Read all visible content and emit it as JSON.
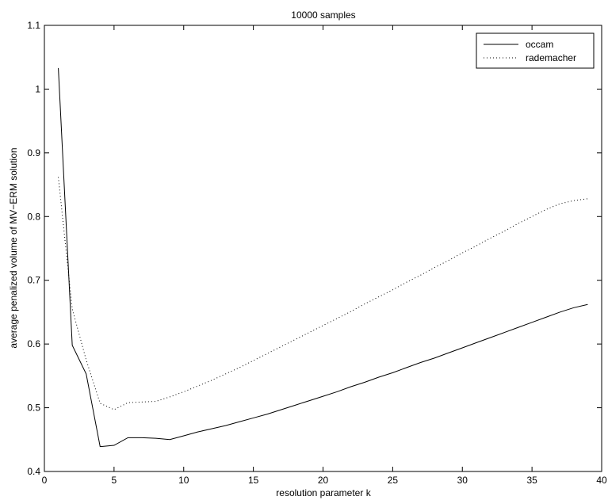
{
  "chart_data": {
    "type": "line",
    "title": "10000 samples",
    "xlabel": "resolution parameter k",
    "ylabel": "average penalized volume of MV−ERM solution",
    "xlim": [
      0,
      40
    ],
    "ylim": [
      0.4,
      1.1
    ],
    "xticks": [
      0,
      5,
      10,
      15,
      20,
      25,
      30,
      35,
      40
    ],
    "yticks": [
      0.4,
      0.5,
      0.6,
      0.7,
      0.8,
      0.9,
      1.0,
      1.1
    ],
    "xtick_labels": [
      "0",
      "5",
      "10",
      "15",
      "20",
      "25",
      "30",
      "35",
      "40"
    ],
    "ytick_labels": [
      "0.4",
      "0.5",
      "0.6",
      "0.7",
      "0.8",
      "0.9",
      "1",
      "1.1"
    ],
    "grid": false,
    "legend_position": "top-right",
    "series": [
      {
        "name": "occam",
        "style": "solid",
        "color": "#000000",
        "x": [
          1,
          2,
          3,
          4,
          5,
          6,
          7,
          8,
          9,
          10,
          11,
          12,
          13,
          14,
          15,
          16,
          17,
          18,
          19,
          20,
          21,
          22,
          23,
          24,
          25,
          26,
          27,
          28,
          29,
          30,
          31,
          32,
          33,
          34,
          35,
          36,
          37,
          38,
          39
        ],
        "y": [
          1.033,
          0.598,
          0.553,
          0.439,
          0.441,
          0.453,
          0.453,
          0.452,
          0.45,
          0.456,
          0.462,
          0.467,
          0.472,
          0.478,
          0.484,
          0.49,
          0.497,
          0.504,
          0.511,
          0.518,
          0.525,
          0.533,
          0.54,
          0.548,
          0.555,
          0.563,
          0.571,
          0.578,
          0.586,
          0.594,
          0.602,
          0.61,
          0.618,
          0.626,
          0.634,
          0.642,
          0.65,
          0.657,
          0.662
        ]
      },
      {
        "name": "rademacher",
        "style": "dotted",
        "color": "#000000",
        "x": [
          1,
          2,
          3,
          4,
          5,
          6,
          7,
          8,
          9,
          10,
          11,
          12,
          13,
          14,
          15,
          16,
          17,
          18,
          19,
          20,
          21,
          22,
          23,
          24,
          25,
          26,
          27,
          28,
          29,
          30,
          31,
          32,
          33,
          34,
          35,
          36,
          37,
          38,
          39
        ],
        "y": [
          0.862,
          0.655,
          0.575,
          0.507,
          0.497,
          0.508,
          0.509,
          0.51,
          0.517,
          0.525,
          0.534,
          0.543,
          0.553,
          0.563,
          0.574,
          0.585,
          0.596,
          0.607,
          0.618,
          0.629,
          0.64,
          0.651,
          0.663,
          0.674,
          0.685,
          0.697,
          0.708,
          0.72,
          0.731,
          0.743,
          0.754,
          0.766,
          0.777,
          0.789,
          0.8,
          0.811,
          0.82,
          0.825,
          0.828
        ]
      }
    ]
  }
}
